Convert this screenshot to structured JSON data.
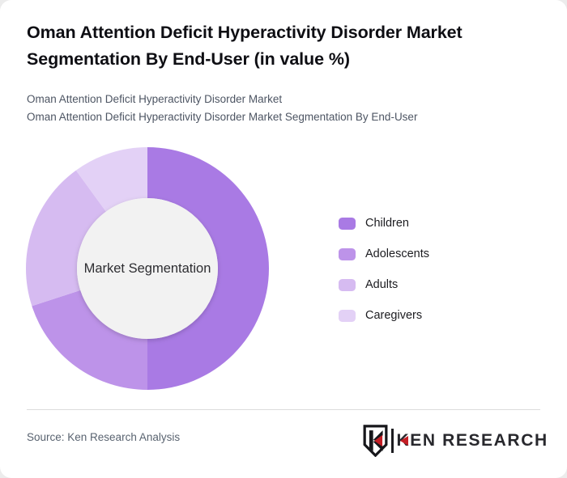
{
  "header": {
    "title": "Oman Attention Deficit Hyperactivity Disorder Market Segmentation By End-User (in value %)",
    "subtitle_line1": "Oman Attention Deficit Hyperactivity Disorder Market",
    "subtitle_line2": "Oman Attention Deficit Hyperactivity Disorder Market Segmentation By End-User"
  },
  "chart_data": {
    "type": "pie",
    "variant": "donut",
    "title": "Oman Attention Deficit Hyperactivity Disorder Market Segmentation By End-User (in value %)",
    "center_label": "Market Segmentation",
    "categories": [
      "Children",
      "Adolescents",
      "Adults",
      "Caregivers"
    ],
    "values": [
      50,
      20,
      20,
      10
    ],
    "unit": "value %",
    "colors": [
      "#a97ae4",
      "#bd93e9",
      "#d6bbf1",
      "#e3d1f6"
    ],
    "hole_color": "#f2f2f2",
    "start_angle_deg": 0,
    "direction": "clockwise",
    "outer_radius": 150,
    "inner_radius": 87,
    "legend_position": "right",
    "data_labels_shown": false
  },
  "legend": {
    "items": [
      {
        "label": "Children"
      },
      {
        "label": "Adolescents"
      },
      {
        "label": "Adults"
      },
      {
        "label": "Caregivers"
      }
    ]
  },
  "footer": {
    "source": "Source: Ken Research Analysis",
    "brand_name": "KEN RESEARCH",
    "brand_icon": "ken-research-shield-icon",
    "brand_accent_color": "#c41e25"
  }
}
